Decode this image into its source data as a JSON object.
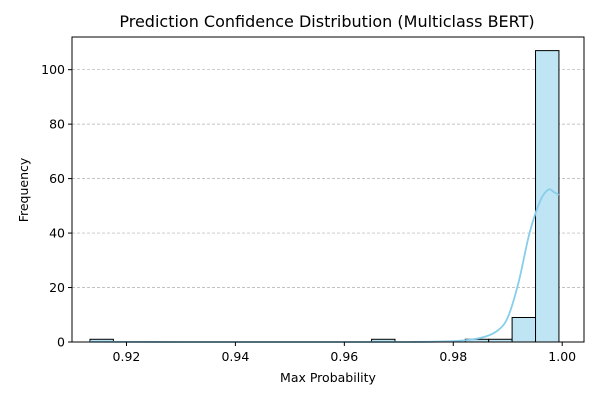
{
  "chart_data": {
    "type": "bar",
    "title": "Prediction Confidence Distribution (Multiclass BERT)",
    "xlabel": "Max Probability",
    "ylabel": "Frequency",
    "xlim": [
      0.91,
      1.004
    ],
    "ylim": [
      0,
      112
    ],
    "x_ticks": [
      0.92,
      0.94,
      0.96,
      0.98,
      1.0
    ],
    "x_tick_labels": [
      "0.92",
      "0.94",
      "0.96",
      "0.98",
      "1.00"
    ],
    "y_ticks": [
      0,
      20,
      40,
      60,
      80,
      100
    ],
    "y_tick_labels": [
      "0",
      "20",
      "40",
      "60",
      "80",
      "100"
    ],
    "grid": "y-dashed",
    "bar_color": "#bfe4f3",
    "kde_color": "#87ceeb",
    "bins": [
      {
        "x0": 0.9133,
        "x1": 0.9176,
        "count": 1
      },
      {
        "x0": 0.965,
        "x1": 0.9693,
        "count": 1
      },
      {
        "x0": 0.9822,
        "x1": 0.9865,
        "count": 1
      },
      {
        "x0": 0.9865,
        "x1": 0.9908,
        "count": 1
      },
      {
        "x0": 0.9908,
        "x1": 0.9951,
        "count": 9
      },
      {
        "x0": 0.9951,
        "x1": 0.9994,
        "count": 107
      }
    ],
    "kde": {
      "x": [
        0.9133,
        0.93,
        0.95,
        0.97,
        0.98,
        0.985,
        0.988,
        0.99,
        0.992,
        0.994,
        0.996,
        0.9975,
        0.9985,
        0.9994
      ],
      "y": [
        0.1,
        0,
        0,
        0,
        0.3,
        1.5,
        4,
        9,
        22,
        40,
        52,
        56,
        55,
        54
      ]
    }
  }
}
